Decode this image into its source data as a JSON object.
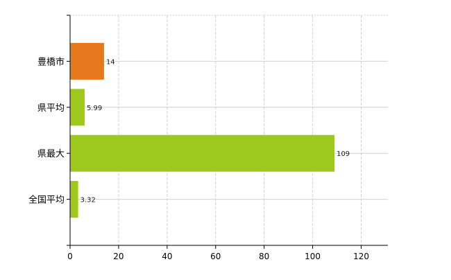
{
  "chart_data": {
    "type": "bar",
    "orientation": "horizontal",
    "categories": [
      "豊橋市",
      "県平均",
      "県最大",
      "全国平均"
    ],
    "values": [
      14,
      5.99,
      109,
      3.32
    ],
    "data_labels": [
      "14",
      "5.99",
      "109",
      "3.32"
    ],
    "xticks": [
      0,
      20,
      40,
      60,
      80,
      100,
      120
    ],
    "xlim": [
      0,
      131
    ],
    "grid": true,
    "colors": [
      "#E8781E",
      "#9DC91F",
      "#9DC91F",
      "#9DC91F"
    ],
    "label_color": "#1a1a1a",
    "grid_color": "#d0d0d0"
  }
}
